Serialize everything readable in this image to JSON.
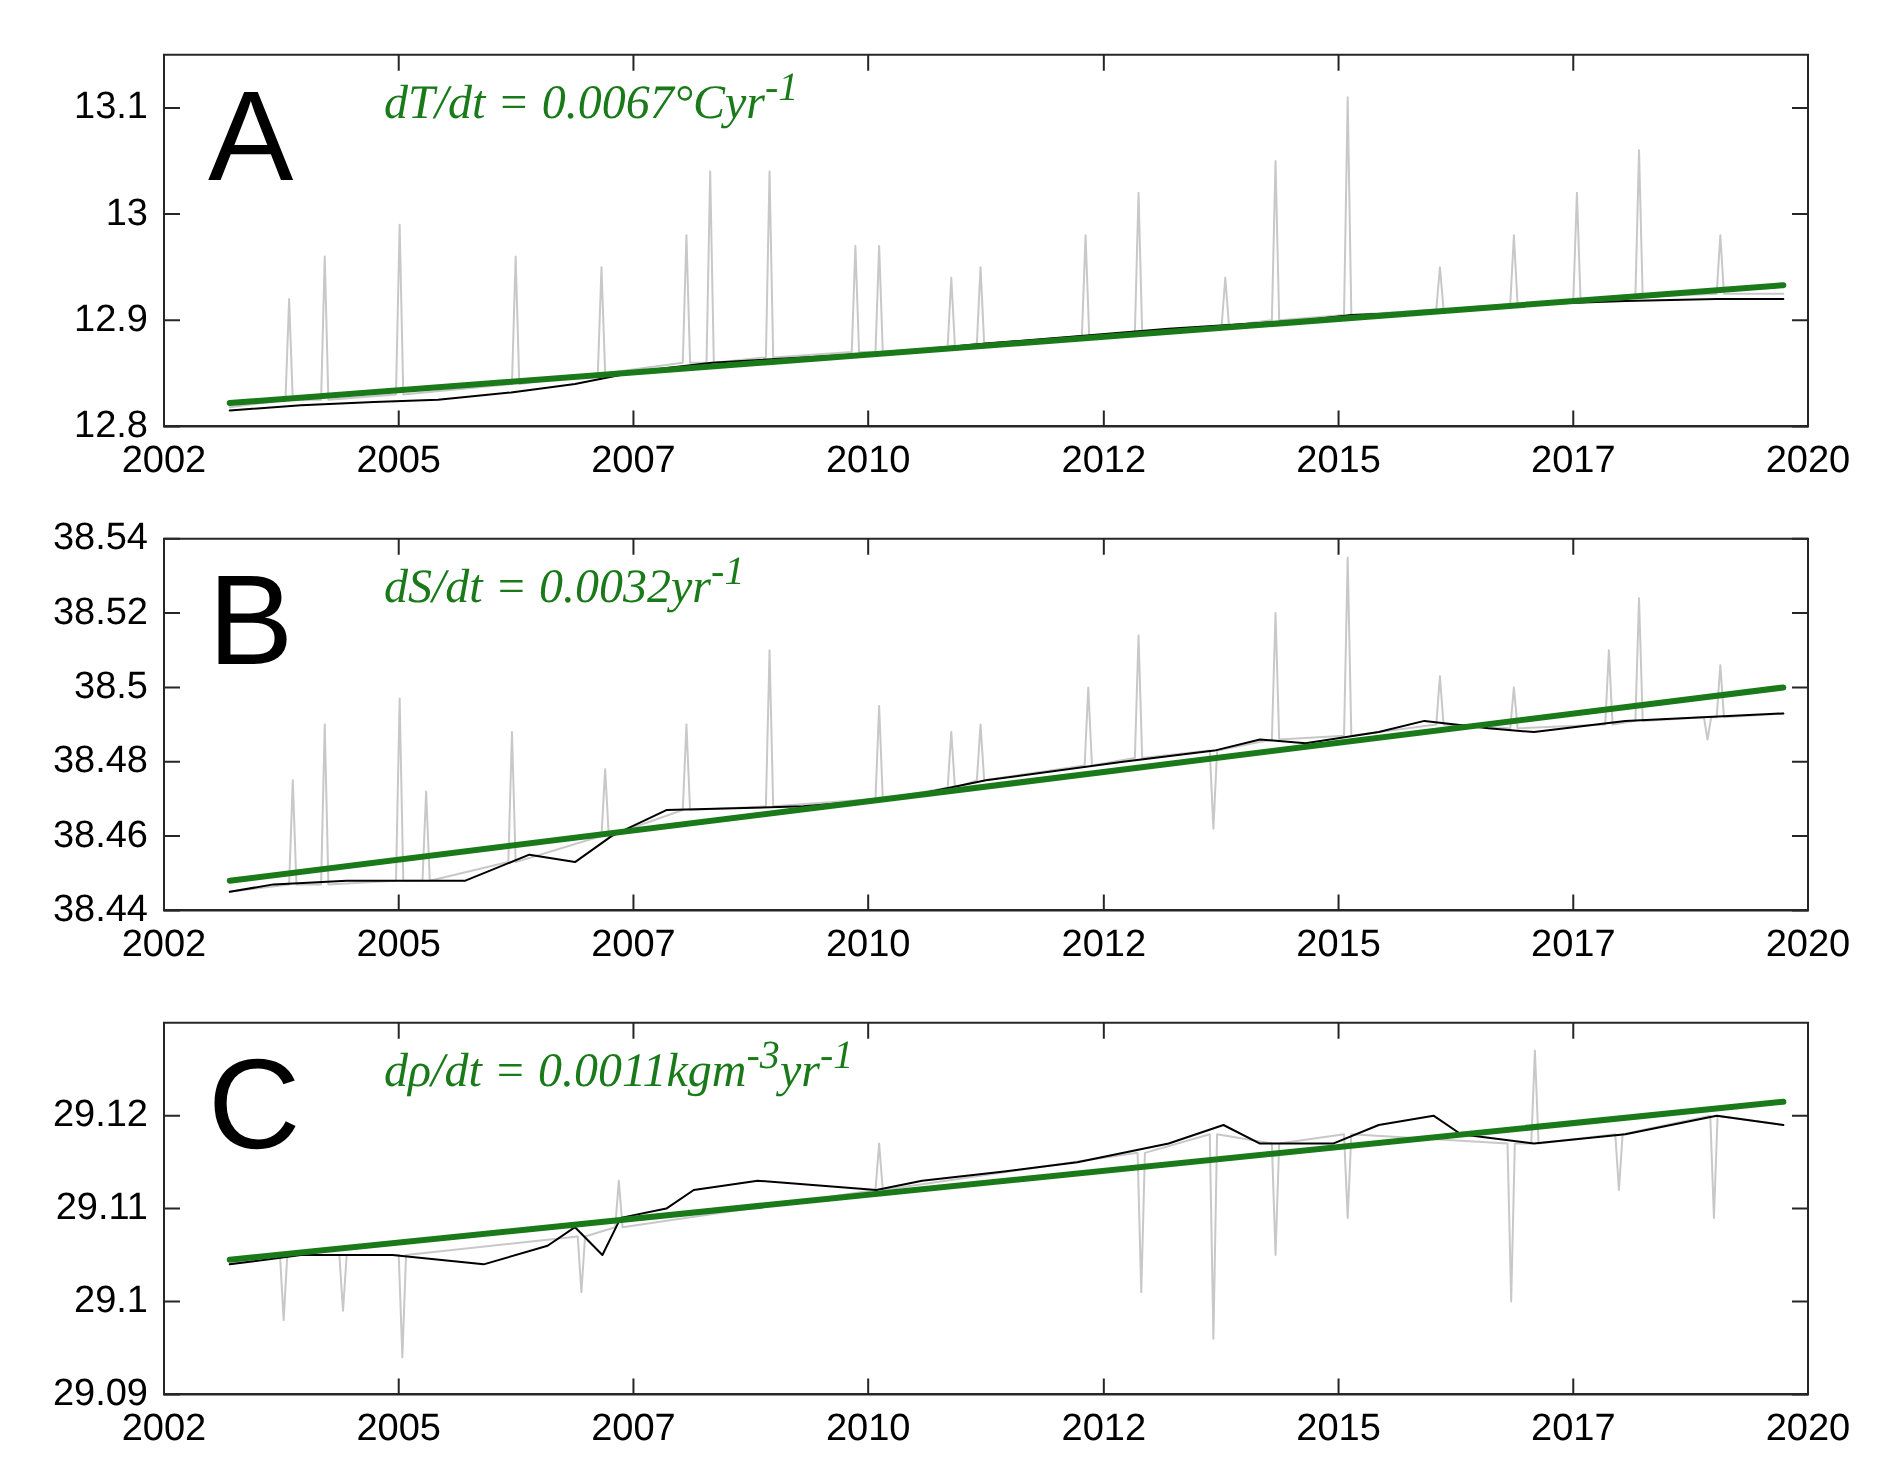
{
  "chart_data": [
    {
      "type": "line",
      "annotations": [
        "A",
        "dT/dt = 0.0067°Cyr$^{-1}$"
      ],
      "xlim": [
        2002,
        2020
      ],
      "xticks": [
        {
          "value": 2002,
          "label": "2002"
        },
        {
          "value": 2004.57,
          "label": "2005"
        },
        {
          "value": 2007.14,
          "label": "2007"
        },
        {
          "value": 2009.71,
          "label": "2010"
        },
        {
          "value": 2012.29,
          "label": "2012"
        },
        {
          "value": 2014.86,
          "label": "2015"
        },
        {
          "value": 2017.43,
          "label": "2017"
        },
        {
          "value": 2020,
          "label": "2020"
        }
      ],
      "ylim": [
        12.8,
        13.15
      ],
      "yticks": [
        12.8,
        12.9,
        13,
        13.1
      ],
      "grid": false,
      "legend": false,
      "series": [
        {
          "color": "#c8c8c8",
          "x": [
            2002.72,
            2003.33,
            2003.37,
            2003.41,
            2003.72,
            2003.76,
            2003.8,
            2004.54,
            2004.58,
            2004.62,
            2005.81,
            2005.85,
            2005.89,
            2006.75,
            2006.79,
            2006.83,
            2007.68,
            2007.72,
            2007.76,
            2007.94,
            2007.98,
            2008.02,
            2008.59,
            2008.63,
            2008.67,
            2009.53,
            2009.57,
            2009.61,
            2009.79,
            2009.83,
            2009.87,
            2010.58,
            2010.62,
            2010.66,
            2010.9,
            2010.94,
            2010.98,
            2012.05,
            2012.09,
            2012.13,
            2012.63,
            2012.67,
            2012.71,
            2013.58,
            2013.62,
            2013.66,
            2014.13,
            2014.17,
            2014.21,
            2014.92,
            2014.96,
            2015.0,
            2015.93,
            2015.97,
            2016.01,
            2016.74,
            2016.78,
            2016.82,
            2017.43,
            2017.47,
            2017.51,
            2018.11,
            2018.15,
            2018.19,
            2019.0,
            2019.04,
            2019.08,
            2019.73
          ],
          "values": [
            12.818,
            12.825,
            12.92,
            12.825,
            12.825,
            12.96,
            12.825,
            12.83,
            12.99,
            12.83,
            12.84,
            12.96,
            12.84,
            12.85,
            12.95,
            12.85,
            12.86,
            12.98,
            12.86,
            12.86,
            13.04,
            12.86,
            12.865,
            13.04,
            12.865,
            12.87,
            12.97,
            12.87,
            12.87,
            12.97,
            12.87,
            12.875,
            12.94,
            12.875,
            12.878,
            12.95,
            12.878,
            12.885,
            12.98,
            12.885,
            12.888,
            13.02,
            12.888,
            12.895,
            12.94,
            12.895,
            12.9,
            13.05,
            12.9,
            12.905,
            13.11,
            12.905,
            12.91,
            12.95,
            12.91,
            12.915,
            12.98,
            12.915,
            12.918,
            13.02,
            12.918,
            12.922,
            13.06,
            12.922,
            12.925,
            12.98,
            12.925,
            12.925
          ]
        },
        {
          "color": "#000000",
          "x": [
            2002.72,
            2003.5,
            2004.3,
            2005,
            2005.8,
            2006.5,
            2007.2,
            2008,
            2009,
            2010,
            2011,
            2012,
            2013,
            2014.5,
            2015,
            2016,
            2017,
            2018,
            2019,
            2019.73
          ],
          "values": [
            12.815,
            12.82,
            12.823,
            12.825,
            12.832,
            12.84,
            12.852,
            12.86,
            12.865,
            12.87,
            12.878,
            12.885,
            12.892,
            12.9,
            12.905,
            12.908,
            12.915,
            12.918,
            12.92,
            12.92
          ]
        },
        {
          "color": "#1a7a1a",
          "x": [
            2002.72,
            2019.73
          ],
          "values": [
            12.822,
            12.933
          ]
        }
      ]
    },
    {
      "type": "line",
      "annotations": [
        "B",
        "dS/dt = 0.0032yr$^{-1}$"
      ],
      "xlim": [
        2002,
        2020
      ],
      "xticks": [
        {
          "value": 2002,
          "label": "2002"
        },
        {
          "value": 2004.57,
          "label": "2005"
        },
        {
          "value": 2007.14,
          "label": "2007"
        },
        {
          "value": 2009.71,
          "label": "2010"
        },
        {
          "value": 2012.29,
          "label": "2012"
        },
        {
          "value": 2014.86,
          "label": "2015"
        },
        {
          "value": 2017.43,
          "label": "2017"
        },
        {
          "value": 2020,
          "label": "2020"
        }
      ],
      "ylim": [
        38.44,
        38.54
      ],
      "yticks": [
        38.44,
        38.46,
        38.48,
        38.5,
        38.52,
        38.54
      ],
      "grid": false,
      "legend": false,
      "series": [
        {
          "color": "#c8c8c8",
          "x": [
            2002.72,
            2003.37,
            2003.41,
            2003.45,
            2003.72,
            2003.76,
            2003.8,
            2004.54,
            2004.58,
            2004.62,
            2004.83,
            2004.87,
            2004.91,
            2005.77,
            2005.81,
            2005.85,
            2006.79,
            2006.83,
            2006.87,
            2007.68,
            2007.72,
            2007.76,
            2008.59,
            2008.63,
            2008.67,
            2009.79,
            2009.83,
            2009.87,
            2010.58,
            2010.62,
            2010.66,
            2010.9,
            2010.94,
            2010.98,
            2012.08,
            2012.12,
            2012.16,
            2012.63,
            2012.67,
            2012.71,
            2013.45,
            2013.49,
            2013.53,
            2014.13,
            2014.17,
            2014.21,
            2014.92,
            2014.96,
            2015.0,
            2015.93,
            2015.97,
            2016.01,
            2016.74,
            2016.78,
            2016.82,
            2017.78,
            2017.82,
            2017.86,
            2018.11,
            2018.15,
            2018.19,
            2018.86,
            2018.9,
            2018.94,
            2019.0,
            2019.04,
            2019.08,
            2019.73
          ],
          "values": [
            38.445,
            38.447,
            38.475,
            38.447,
            38.447,
            38.49,
            38.447,
            38.448,
            38.497,
            38.448,
            38.448,
            38.472,
            38.448,
            38.453,
            38.488,
            38.453,
            38.46,
            38.478,
            38.46,
            38.467,
            38.49,
            38.467,
            38.468,
            38.51,
            38.468,
            38.47,
            38.495,
            38.47,
            38.473,
            38.488,
            38.473,
            38.475,
            38.49,
            38.475,
            38.479,
            38.5,
            38.479,
            38.481,
            38.514,
            38.481,
            38.483,
            38.462,
            38.483,
            38.486,
            38.52,
            38.486,
            38.487,
            38.535,
            38.487,
            38.49,
            38.503,
            38.49,
            38.489,
            38.5,
            38.489,
            38.49,
            38.51,
            38.49,
            38.491,
            38.524,
            38.491,
            38.492,
            38.486,
            38.492,
            38.492,
            38.506,
            38.492,
            38.493
          ]
        },
        {
          "color": "#000000",
          "x": [
            2002.72,
            2003.2,
            2004,
            2005.3,
            2006,
            2006.5,
            2006.9,
            2007.5,
            2009,
            2010,
            2011,
            2012.5,
            2013.5,
            2014,
            2014.5,
            2015.3,
            2015.8,
            2016.5,
            2017,
            2018,
            2019.73
          ],
          "values": [
            38.445,
            38.447,
            38.448,
            38.448,
            38.455,
            38.453,
            38.46,
            38.467,
            38.468,
            38.47,
            38.475,
            38.48,
            38.483,
            38.486,
            38.485,
            38.488,
            38.491,
            38.489,
            38.488,
            38.491,
            38.493
          ]
        },
        {
          "color": "#1a7a1a",
          "x": [
            2002.72,
            2019.73
          ],
          "values": [
            38.448,
            38.5
          ]
        }
      ]
    },
    {
      "type": "line",
      "annotations": [
        "C",
        "dρ/dt = 0.0011kgm$^{-3}$yr$^{-1}$"
      ],
      "xlim": [
        2002,
        2020
      ],
      "xticks": [
        {
          "value": 2002,
          "label": "2002"
        },
        {
          "value": 2004.57,
          "label": "2005"
        },
        {
          "value": 2007.14,
          "label": "2007"
        },
        {
          "value": 2009.71,
          "label": "2010"
        },
        {
          "value": 2012.29,
          "label": "2012"
        },
        {
          "value": 2014.86,
          "label": "2015"
        },
        {
          "value": 2017.43,
          "label": "2017"
        },
        {
          "value": 2020,
          "label": "2020"
        }
      ],
      "ylim": [
        29.09,
        29.13
      ],
      "yticks": [
        29.09,
        29.1,
        29.11,
        29.12
      ],
      "grid": false,
      "legend": false,
      "series": [
        {
          "color": "#c8c8c8",
          "x": [
            2002.72,
            2003.27,
            2003.31,
            2003.35,
            2003.92,
            2003.96,
            2004.0,
            2004.57,
            2004.61,
            2004.65,
            2006.53,
            2006.57,
            2006.61,
            2006.94,
            2006.98,
            2007.02,
            2009.79,
            2009.83,
            2009.87,
            2012.66,
            2012.7,
            2012.74,
            2013.45,
            2013.49,
            2013.53,
            2014.13,
            2014.17,
            2014.21,
            2014.92,
            2014.96,
            2015.0,
            2016.71,
            2016.75,
            2016.79,
            2016.97,
            2017.01,
            2017.05,
            2017.89,
            2017.93,
            2017.97,
            2018.93,
            2018.97,
            2019.01,
            2019.73
          ],
          "values": [
            29.104,
            29.105,
            29.098,
            29.105,
            29.105,
            29.099,
            29.105,
            29.105,
            29.094,
            29.105,
            29.107,
            29.101,
            29.107,
            29.108,
            29.113,
            29.108,
            29.112,
            29.117,
            29.112,
            29.116,
            29.101,
            29.116,
            29.118,
            29.096,
            29.118,
            29.117,
            29.105,
            29.117,
            29.118,
            29.109,
            29.118,
            29.117,
            29.1,
            29.117,
            29.117,
            29.127,
            29.117,
            29.118,
            29.112,
            29.118,
            29.12,
            29.109,
            29.12,
            29.119
          ]
        },
        {
          "color": "#000000",
          "x": [
            2002.72,
            2003.5,
            2004.5,
            2005.5,
            2006.2,
            2006.5,
            2006.8,
            2007,
            2007.5,
            2007.8,
            2008.5,
            2009.8,
            2010.3,
            2011.2,
            2012,
            2013,
            2013.6,
            2014,
            2014.8,
            2015.3,
            2015.9,
            2016.2,
            2017,
            2018,
            2019,
            2019.73
          ],
          "values": [
            29.104,
            29.105,
            29.105,
            29.104,
            29.106,
            29.108,
            29.105,
            29.109,
            29.11,
            29.112,
            29.113,
            29.112,
            29.113,
            29.114,
            29.115,
            29.117,
            29.119,
            29.117,
            29.117,
            29.119,
            29.12,
            29.118,
            29.117,
            29.118,
            29.12,
            29.119
          ]
        },
        {
          "color": "#1a7a1a",
          "x": [
            2002.72,
            2019.73
          ],
          "values": [
            29.1045,
            29.1215
          ]
        }
      ]
    }
  ]
}
